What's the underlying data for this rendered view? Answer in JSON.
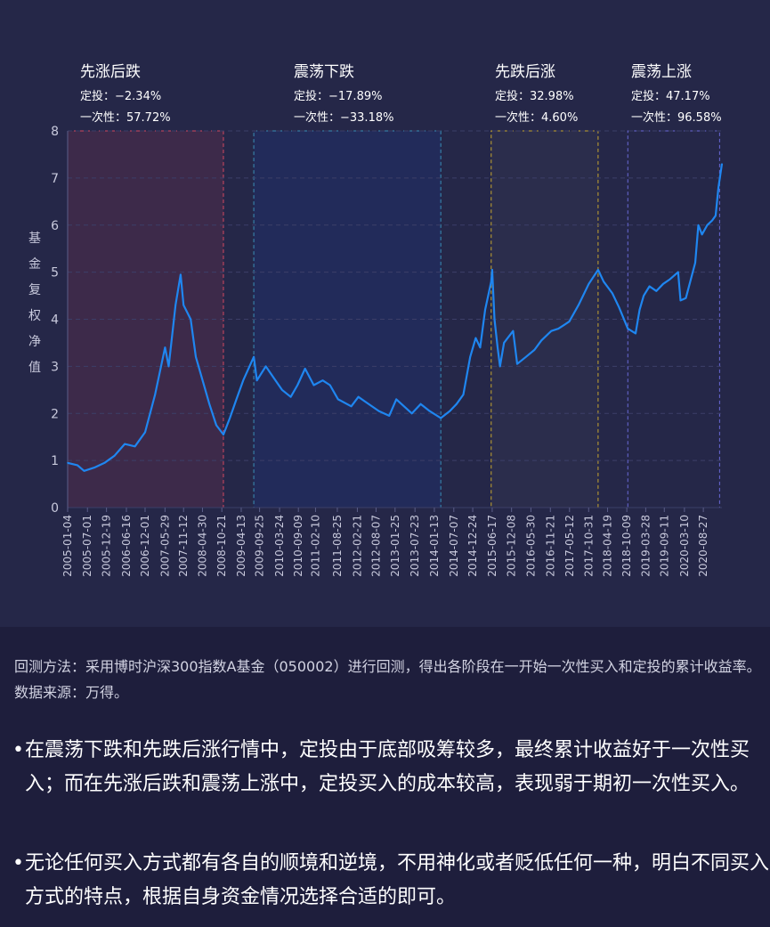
{
  "chart_data": {
    "type": "line",
    "ylabel": "基金复权净值",
    "ylim": [
      0,
      8
    ],
    "yticks": [
      0,
      1,
      2,
      3,
      4,
      5,
      6,
      7,
      8
    ],
    "grid": true,
    "xlim": [
      "2005-01-04",
      "2021-02-10"
    ],
    "xticks": [
      "2005-01-04",
      "2005-07-01",
      "2005-12-19",
      "2006-06-16",
      "2006-12-01",
      "2007-05-29",
      "2007-11-12",
      "2008-04-30",
      "2008-10-21",
      "2009-04-13",
      "2009-09-25",
      "2010-03-24",
      "2010-09-09",
      "2011-02-10",
      "2011-08-25",
      "2012-02-21",
      "2012-08-07",
      "2013-01-25",
      "2013-07-23",
      "2014-01-13",
      "2014-07-07",
      "2014-12-24",
      "2015-06-17",
      "2015-12-08",
      "2016-05-30",
      "2016-11-21",
      "2017-05-12",
      "2017-10-31",
      "2018-04-19",
      "2018-10-09",
      "2019-03-28",
      "2019-09-11",
      "2020-03-10",
      "2020-08-27"
    ],
    "series": [
      {
        "color": "#1f86f0",
        "x": [
          "2005-01-04",
          "2005-04-01",
          "2005-06-01",
          "2005-09-01",
          "2005-12-01",
          "2006-03-01",
          "2006-06-01",
          "2006-09-01",
          "2006-12-01",
          "2007-03-01",
          "2007-05-29",
          "2007-07-01",
          "2007-09-01",
          "2007-10-16",
          "2007-11-12",
          "2008-01-15",
          "2008-03-01",
          "2008-05-01",
          "2008-07-01",
          "2008-09-01",
          "2008-11-04",
          "2009-01-01",
          "2009-03-01",
          "2009-05-01",
          "2009-08-04",
          "2009-09-01",
          "2009-11-20",
          "2010-02-01",
          "2010-04-15",
          "2010-07-02",
          "2010-09-01",
          "2010-11-08",
          "2011-01-25",
          "2011-04-15",
          "2011-06-20",
          "2011-09-01",
          "2011-12-28",
          "2012-03-01",
          "2012-05-01",
          "2012-09-01",
          "2012-12-03",
          "2013-02-05",
          "2013-06-25",
          "2013-09-12",
          "2013-12-01",
          "2014-03-12",
          "2014-06-01",
          "2014-08-01",
          "2014-10-01",
          "2014-12-01",
          "2015-01-20",
          "2015-03-01",
          "2015-04-15",
          "2015-06-08",
          "2015-06-17",
          "2015-07-08",
          "2015-08-05",
          "2015-08-26",
          "2015-10-01",
          "2015-12-22",
          "2016-01-28",
          "2016-04-15",
          "2016-07-01",
          "2016-09-01",
          "2016-11-29",
          "2017-02-01",
          "2017-05-10",
          "2017-08-01",
          "2017-11-01",
          "2018-01-24",
          "2018-03-15",
          "2018-06-01",
          "2018-08-01",
          "2018-10-18",
          "2018-12-27",
          "2019-02-01",
          "2019-03-10",
          "2019-05-01",
          "2019-07-01",
          "2019-09-01",
          "2019-11-01",
          "2020-01-13",
          "2020-02-04",
          "2020-03-23",
          "2020-05-01",
          "2020-06-15",
          "2020-07-13",
          "2020-08-15",
          "2020-10-01",
          "2020-11-15",
          "2020-12-15",
          "2021-01-10",
          "2021-02-10"
        ],
        "values": [
          0.95,
          0.9,
          0.78,
          0.85,
          0.95,
          1.1,
          1.35,
          1.3,
          1.6,
          2.4,
          3.4,
          3.0,
          4.3,
          4.95,
          4.3,
          4.0,
          3.2,
          2.7,
          2.2,
          1.75,
          1.55,
          1.9,
          2.3,
          2.7,
          3.2,
          2.7,
          3.0,
          2.75,
          2.5,
          2.35,
          2.6,
          2.95,
          2.6,
          2.7,
          2.6,
          2.3,
          2.15,
          2.35,
          2.25,
          2.05,
          1.95,
          2.3,
          2.0,
          2.2,
          2.05,
          1.9,
          2.05,
          2.2,
          2.4,
          3.2,
          3.6,
          3.4,
          4.2,
          4.8,
          5.05,
          4.0,
          3.4,
          3.0,
          3.5,
          3.75,
          3.05,
          3.2,
          3.35,
          3.55,
          3.75,
          3.8,
          3.95,
          4.3,
          4.75,
          5.05,
          4.8,
          4.55,
          4.25,
          3.8,
          3.7,
          4.2,
          4.5,
          4.7,
          4.6,
          4.75,
          4.85,
          5.0,
          4.4,
          4.45,
          4.8,
          5.2,
          6.0,
          5.8,
          6.0,
          6.1,
          6.2,
          6.8,
          7.3
        ]
      }
    ],
    "phases": [
      {
        "name": "先涨后跌",
        "dingtou": "定投：−2.34%",
        "yicixing": "一次性：57.72%",
        "start": "2005-01-04",
        "end": "2008-11-04",
        "color": "#d14a60",
        "fill": "#3d2a4a"
      },
      {
        "name": "震荡下跌",
        "dingtou": "定投：−17.89%",
        "yicixing": "一次性：−33.18%",
        "start": "2009-08-04",
        "end": "2014-03-12",
        "color": "#3a8fb6",
        "fill": "#222b5a"
      },
      {
        "name": "先跌后涨",
        "dingtou": "定投：32.98%",
        "yicixing": "一次性：4.60%",
        "start": "2015-06-08",
        "end": "2018-01-24",
        "color": "#c8a830",
        "fill": "#2b2d4c"
      },
      {
        "name": "震荡上涨",
        "dingtou": "定投：47.17%",
        "yicixing": "一次性：96.58%",
        "start": "2018-10-18",
        "end": "2021-01-20",
        "color": "#6a6ad8",
        "fill": "#252748"
      }
    ]
  },
  "text": {
    "method_note": "回测方法：采用博时沪深300指数A基金（050002）进行回测，得出各阶段在一开始一次性买入和定投的累计收益率。数据来源：万得。",
    "bullet_1": "在震荡下跌和先跌后涨行情中，定投由于底部吸筹较多，最终累计收益好于一次性买入；而在先涨后跌和震荡上涨中，定投买入的成本较高，表现弱于期初一次性买入。",
    "bullet_2": "无论任何买入方式都有各自的顺境和逆境，不用神化或者贬低任何一种，明白不同买入方式的特点，根据自身资金情况选择合适的即可。",
    "bullet_mark": "•"
  }
}
